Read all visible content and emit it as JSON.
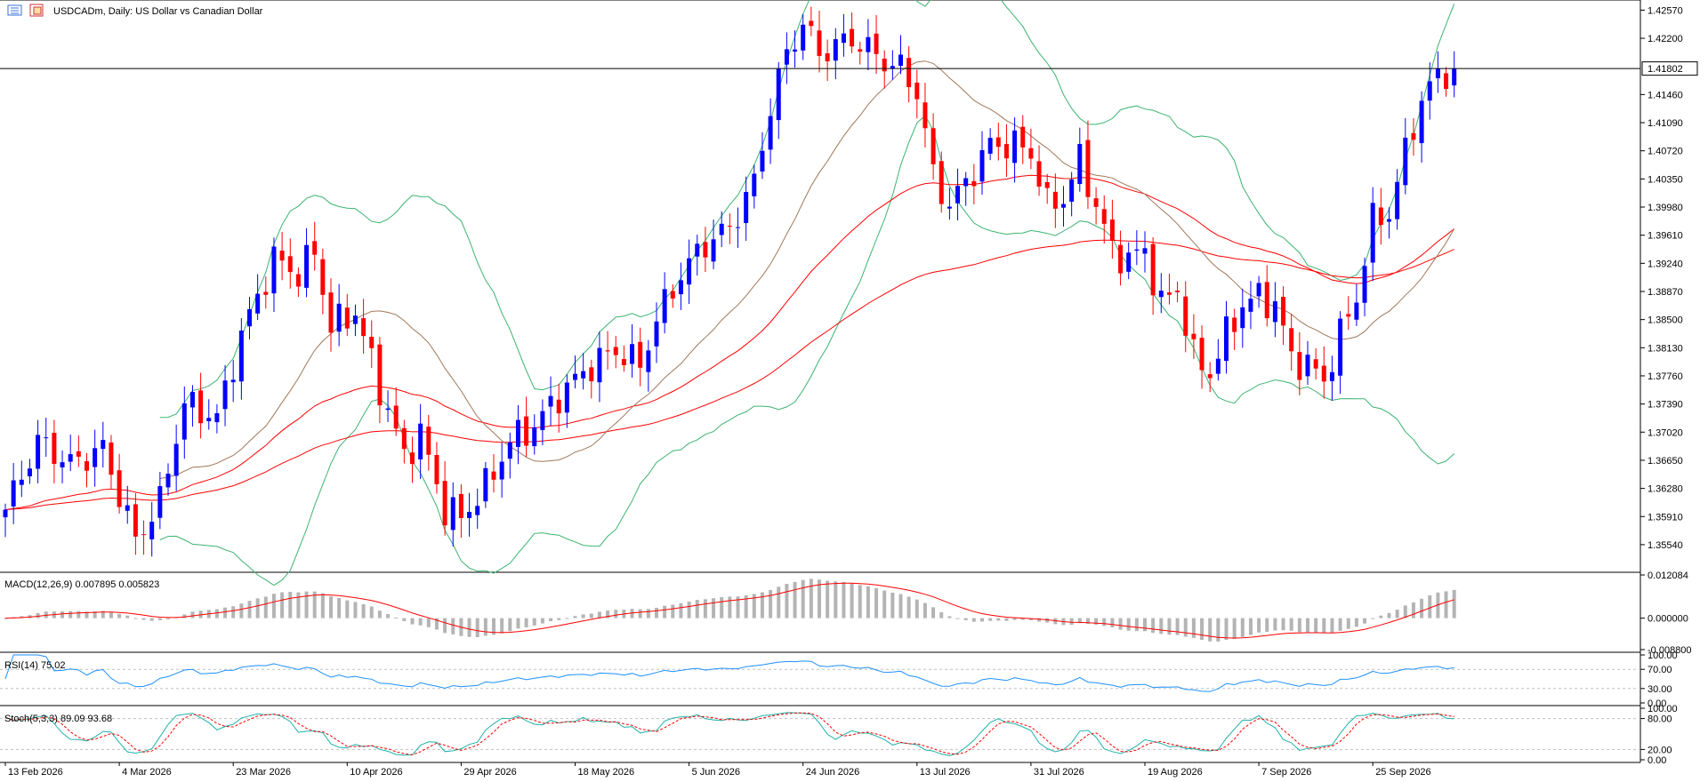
{
  "header": {
    "symbol_title": "USDCADm, Daily:  US Dollar vs Canadian Dollar"
  },
  "colors": {
    "bull_candle": "#0000ff",
    "bear_candle": "#ff0000",
    "bollinger": "#3cb371",
    "sma_fast": "#a0785a",
    "ma_red": "#ff0000",
    "macd_hist": "#b4b4b4",
    "macd_signal": "#ff0000",
    "rsi_line": "#1e90ff",
    "stoch_main": "#20b2aa",
    "stoch_signal": "#ff0000",
    "grid": "#c0c0c0",
    "bid_line": "#000000"
  },
  "chart_data": [
    {
      "type": "candlestick",
      "name": "main",
      "title": "USDCADm, Daily:  US Dollar vs Canadian Dollar",
      "current_price": "1.41802",
      "y_ticks": [
        "1.42570",
        "1.42200",
        "1.41460",
        "1.41090",
        "1.40720",
        "1.40350",
        "1.39980",
        "1.39610",
        "1.39240",
        "1.38870",
        "1.38500",
        "1.38130",
        "1.37760",
        "1.37390",
        "1.37020",
        "1.36650",
        "1.36280",
        "1.35910",
        "1.35540"
      ],
      "ylim": [
        1.352,
        1.4268
      ],
      "x_labels": [
        "13 Feb 2026",
        "4 Mar 2026",
        "23 Mar 2026",
        "10 Apr 2026",
        "29 Apr 2026",
        "18 May 2026",
        "5 Jun 2026",
        "24 Jun 2026",
        "13 Jul 2026",
        "31 Jul 2026",
        "19 Aug 2026",
        "7 Sep 2026",
        "25 Sep 2026"
      ],
      "x_label_bars": [
        0,
        14,
        28,
        42,
        56,
        70,
        84,
        98,
        112,
        126,
        140,
        154,
        168
      ],
      "waypoints": [
        [
          0,
          1.36
        ],
        [
          4,
          1.369
        ],
        [
          8,
          1.366
        ],
        [
          12,
          1.368
        ],
        [
          16,
          1.356
        ],
        [
          19,
          1.361
        ],
        [
          22,
          1.374
        ],
        [
          26,
          1.372
        ],
        [
          29,
          1.383
        ],
        [
          33,
          1.393
        ],
        [
          36,
          1.391
        ],
        [
          38,
          1.394
        ],
        [
          40,
          1.384
        ],
        [
          43,
          1.386
        ],
        [
          46,
          1.376
        ],
        [
          49,
          1.367
        ],
        [
          51,
          1.37
        ],
        [
          54,
          1.36
        ],
        [
          56,
          1.359
        ],
        [
          59,
          1.363
        ],
        [
          62,
          1.369
        ],
        [
          65,
          1.371
        ],
        [
          68,
          1.375
        ],
        [
          72,
          1.379
        ],
        [
          75,
          1.381
        ],
        [
          78,
          1.379
        ],
        [
          80,
          1.385
        ],
        [
          83,
          1.391
        ],
        [
          86,
          1.395
        ],
        [
          89,
          1.397
        ],
        [
          92,
          1.403
        ],
        [
          94,
          1.413
        ],
        [
          96,
          1.42
        ],
        [
          98,
          1.424
        ],
        [
          100,
          1.42
        ],
        [
          104,
          1.422
        ],
        [
          108,
          1.419
        ],
        [
          110,
          1.418
        ],
        [
          112,
          1.415
        ],
        [
          114,
          1.404
        ],
        [
          116,
          1.4
        ],
        [
          118,
          1.403
        ],
        [
          121,
          1.408
        ],
        [
          124,
          1.408
        ],
        [
          126,
          1.407
        ],
        [
          128,
          1.4
        ],
        [
          130,
          1.401
        ],
        [
          132,
          1.406
        ],
        [
          134,
          1.4
        ],
        [
          136,
          1.394
        ],
        [
          138,
          1.393
        ],
        [
          140,
          1.394
        ],
        [
          142,
          1.387
        ],
        [
          144,
          1.389
        ],
        [
          146,
          1.38
        ],
        [
          148,
          1.378
        ],
        [
          150,
          1.383
        ],
        [
          152,
          1.387
        ],
        [
          154,
          1.388
        ],
        [
          156,
          1.387
        ],
        [
          158,
          1.38
        ],
        [
          160,
          1.379
        ],
        [
          162,
          1.377
        ],
        [
          164,
          1.383
        ],
        [
          166,
          1.388
        ],
        [
          168,
          1.398
        ],
        [
          170,
          1.399
        ],
        [
          172,
          1.407
        ],
        [
          174,
          1.414
        ],
        [
          176,
          1.417
        ],
        [
          178,
          1.418
        ]
      ]
    },
    {
      "type": "line",
      "name": "MACD",
      "label": "MACD(12,26,9) 0.007895 0.005823",
      "y_ticks": [
        "0.012084",
        "0.000000",
        "-0.008800"
      ],
      "ylim": [
        -0.0088,
        0.012084
      ]
    },
    {
      "type": "line",
      "name": "RSI",
      "label": "RSI(14) 75.02",
      "y_ticks": [
        "100.00",
        "70.00",
        "30.00",
        "0.00"
      ],
      "ylim": [
        0,
        100
      ],
      "levels": [
        70,
        30
      ]
    },
    {
      "type": "line",
      "name": "Stochastic",
      "label": "Stoch(5,3,3) 89.09 93.68",
      "y_ticks": [
        "100.00",
        "80.00",
        "20.00",
        "0.00"
      ],
      "ylim": [
        0,
        100
      ],
      "levels": [
        80,
        20
      ]
    }
  ]
}
